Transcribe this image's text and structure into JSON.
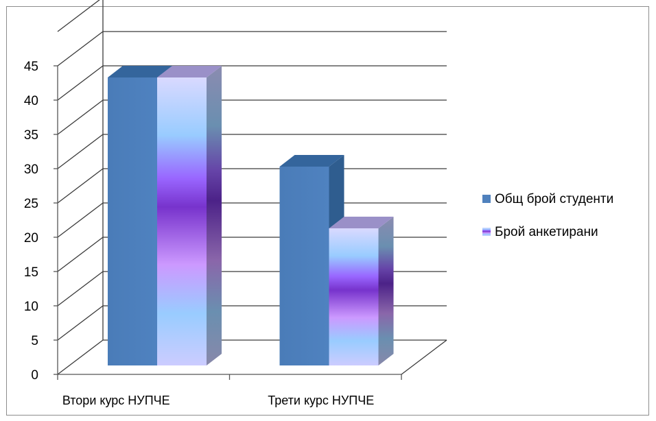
{
  "chart_data": {
    "type": "bar",
    "style": "3d-clustered-column",
    "categories": [
      "Втори курс НУПЧЕ",
      "Трети курс НУПЧЕ"
    ],
    "series": [
      {
        "name": "Общ брой студенти",
        "values": [
          42,
          29
        ],
        "color": "#4F81BD"
      },
      {
        "name": "Брой анкетирани",
        "values": [
          42,
          20
        ],
        "color": "#9966FF"
      }
    ],
    "yticks": [
      "0",
      "5",
      "10",
      "15",
      "20",
      "25",
      "30",
      "35",
      "40",
      "45"
    ],
    "ylim": [
      0,
      50
    ],
    "grid": true,
    "legend": "right",
    "title": "",
    "xlabel": "",
    "ylabel": ""
  }
}
